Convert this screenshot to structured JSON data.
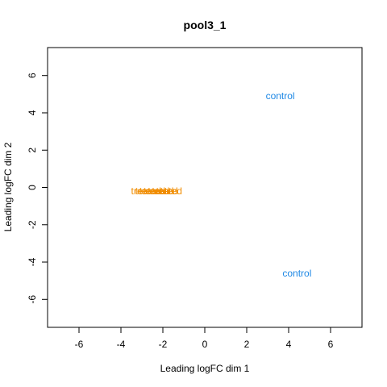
{
  "chart_data": {
    "type": "scatter",
    "title": "pool3_1",
    "xlabel": "Leading logFC dim 1",
    "ylabel": "Leading logFC dim 2",
    "xlim": [
      -7.5,
      7.5
    ],
    "ylim": [
      -7.5,
      7.5
    ],
    "xticks": [
      -6,
      -4,
      -2,
      0,
      2,
      4,
      6
    ],
    "yticks": [
      -6,
      -4,
      -2,
      0,
      2,
      4,
      6
    ],
    "grid": false,
    "legend": "none",
    "point_style": "text labels at sample coordinates",
    "points": [
      {
        "label": "control",
        "x": 3.6,
        "y": 4.9,
        "group": "control"
      },
      {
        "label": "control",
        "x": 4.4,
        "y": -4.6,
        "group": "control"
      },
      {
        "label": "treated",
        "x": -2.8,
        "y": -0.2,
        "group": "treated"
      },
      {
        "label": "treated",
        "x": -2.6,
        "y": -0.2,
        "group": "treated"
      },
      {
        "label": "treated",
        "x": -2.4,
        "y": -0.2,
        "group": "treated"
      },
      {
        "label": "treated",
        "x": -2.2,
        "y": -0.2,
        "group": "treated"
      },
      {
        "label": "treated",
        "x": -2.0,
        "y": -0.2,
        "group": "treated"
      },
      {
        "label": "treated",
        "x": -1.8,
        "y": -0.2,
        "group": "treated"
      }
    ],
    "colors": {
      "control": "#1e88e5",
      "treated": "#f08c00"
    }
  }
}
